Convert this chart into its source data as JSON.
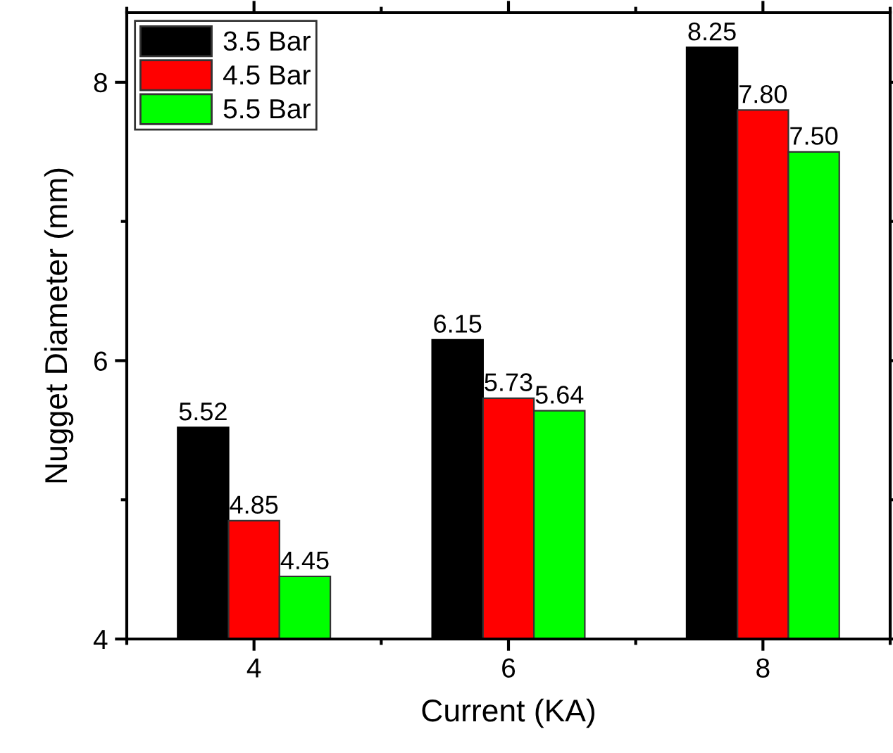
{
  "chart_data": {
    "type": "bar",
    "xlabel": "Current (KA)",
    "ylabel": "Nugget Diameter (mm)",
    "x": [
      4,
      6,
      8
    ],
    "xlim": [
      3,
      9
    ],
    "xticks": [
      4,
      6,
      8
    ],
    "ylim": [
      4,
      8.5
    ],
    "yticks": [
      4,
      6,
      8
    ],
    "series": [
      {
        "name": "3.5 Bar",
        "color": "#000000",
        "values": [
          5.52,
          6.15,
          8.25
        ],
        "value_labels": [
          "5.52",
          "6.15",
          "8.25"
        ]
      },
      {
        "name": "4.5 Bar",
        "color": "#ff0000",
        "values": [
          4.85,
          5.73,
          7.8
        ],
        "value_labels": [
          "4.85",
          "5.73",
          "7.80"
        ]
      },
      {
        "name": "5.5 Bar",
        "color": "#00ff00",
        "values": [
          4.45,
          5.64,
          7.5
        ],
        "value_labels": [
          "4.45",
          "5.64",
          "7.50"
        ]
      }
    ],
    "legend": "top left",
    "grid": false
  }
}
